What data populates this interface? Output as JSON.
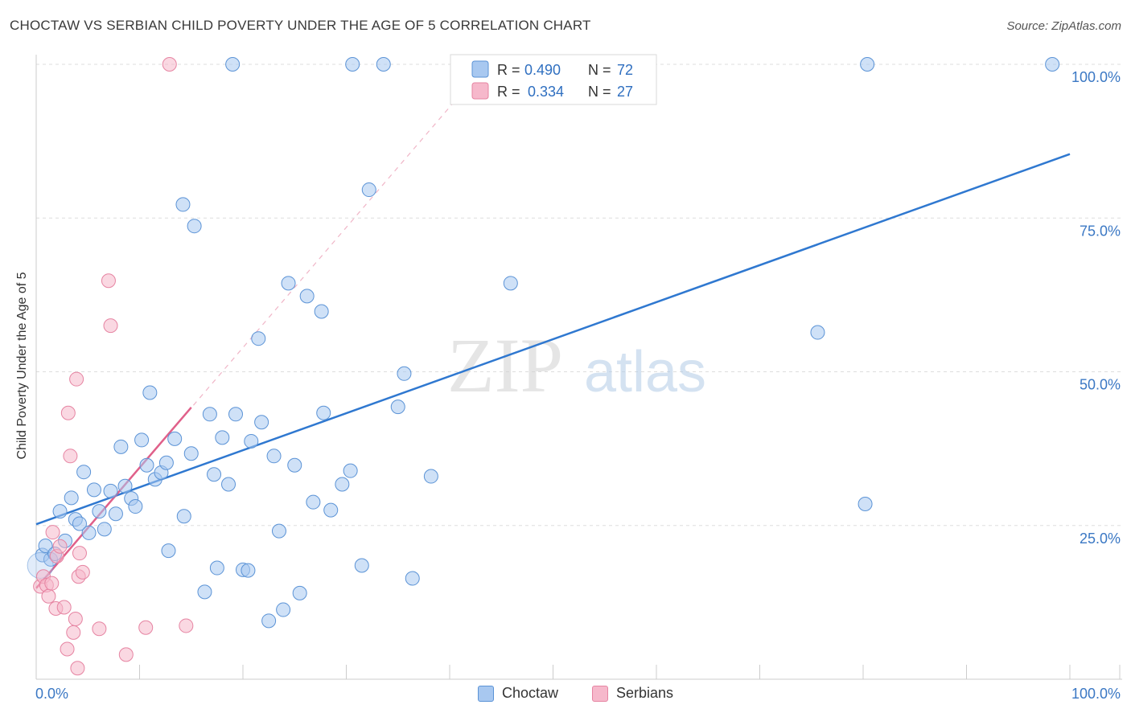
{
  "title": "CHOCTAW VS SERBIAN CHILD POVERTY UNDER THE AGE OF 5 CORRELATION CHART",
  "source": "Source: ZipAtlas.com",
  "watermark": {
    "zip": "ZIP",
    "atlas": "atlas"
  },
  "colors": {
    "choctaw_fill": "#a8c8f0",
    "choctaw_stroke": "#5b93d6",
    "choctaw_line": "#2f78d0",
    "serbians_fill": "#f6b8cb",
    "serbians_stroke": "#e684a2",
    "serbians_line": "#e0608a",
    "axis_label": "#3b78c4",
    "grid": "#dddddd"
  },
  "legend": {
    "items": [
      {
        "r_label": "R =",
        "r_value": "0.490",
        "n_label": "N =",
        "n_value": "72"
      },
      {
        "r_label": "R =",
        "r_value": "0.334",
        "n_label": "N =",
        "n_value": "27"
      }
    ]
  },
  "bottom_legend": [
    "Choctaw",
    "Serbians"
  ],
  "chart_data": {
    "type": "scatter",
    "title": "CHOCTAW VS SERBIAN CHILD POVERTY UNDER THE AGE OF 5 CORRELATION CHART",
    "xlabel": "",
    "ylabel": "Child Poverty Under the Age of 5",
    "xlim": [
      0,
      100
    ],
    "ylim": [
      0,
      100
    ],
    "x_tick_labels": [
      "0.0%",
      "100.0%"
    ],
    "y_ticks": [
      25,
      50,
      75,
      100
    ],
    "y_tick_labels": [
      "25.0%",
      "50.0%",
      "75.0%",
      "100.0%"
    ],
    "grid": true,
    "series": [
      {
        "name": "Choctaw",
        "r": 0.49,
        "n": 72,
        "trend": {
          "x": [
            0,
            100
          ],
          "y": [
            25.2,
            85.4
          ]
        },
        "points": [
          [
            0.6,
            20.2
          ],
          [
            0.9,
            21.7
          ],
          [
            1.4,
            19.5
          ],
          [
            1.8,
            20.4
          ],
          [
            2.3,
            27.3
          ],
          [
            2.8,
            22.5
          ],
          [
            3.4,
            29.5
          ],
          [
            3.8,
            26.0
          ],
          [
            4.2,
            25.3
          ],
          [
            4.6,
            33.7
          ],
          [
            5.1,
            23.8
          ],
          [
            5.6,
            30.8
          ],
          [
            6.1,
            27.3
          ],
          [
            6.6,
            24.4
          ],
          [
            7.2,
            30.6
          ],
          [
            7.7,
            26.9
          ],
          [
            8.2,
            37.8
          ],
          [
            8.6,
            31.4
          ],
          [
            9.2,
            29.4
          ],
          [
            9.6,
            28.1
          ],
          [
            10.2,
            38.9
          ],
          [
            10.7,
            34.8
          ],
          [
            11.0,
            46.6
          ],
          [
            11.5,
            32.5
          ],
          [
            12.1,
            33.6
          ],
          [
            12.6,
            35.2
          ],
          [
            12.8,
            20.9
          ],
          [
            13.4,
            39.1
          ],
          [
            14.3,
            26.5
          ],
          [
            14.2,
            77.2
          ],
          [
            15.0,
            36.7
          ],
          [
            15.3,
            73.7
          ],
          [
            16.3,
            14.2
          ],
          [
            16.8,
            43.1
          ],
          [
            17.2,
            33.3
          ],
          [
            17.5,
            18.1
          ],
          [
            18.0,
            39.3
          ],
          [
            18.6,
            31.7
          ],
          [
            19.0,
            100
          ],
          [
            19.3,
            43.1
          ],
          [
            20.0,
            17.8
          ],
          [
            20.5,
            17.7
          ],
          [
            20.8,
            38.7
          ],
          [
            21.5,
            55.4
          ],
          [
            21.8,
            41.8
          ],
          [
            22.5,
            9.5
          ],
          [
            23.0,
            36.3
          ],
          [
            23.5,
            24.1
          ],
          [
            23.9,
            11.3
          ],
          [
            24.4,
            64.4
          ],
          [
            25.0,
            34.8
          ],
          [
            25.5,
            14.0
          ],
          [
            26.2,
            62.3
          ],
          [
            26.8,
            28.8
          ],
          [
            27.6,
            59.8
          ],
          [
            27.8,
            43.3
          ],
          [
            28.5,
            27.5
          ],
          [
            29.6,
            31.7
          ],
          [
            30.4,
            33.9
          ],
          [
            30.6,
            100
          ],
          [
            31.5,
            18.5
          ],
          [
            32.2,
            79.6
          ],
          [
            33.6,
            100
          ],
          [
            35.0,
            44.3
          ],
          [
            35.6,
            49.7
          ],
          [
            36.4,
            16.4
          ],
          [
            38.2,
            33.0
          ],
          [
            45.9,
            64.4
          ],
          [
            75.6,
            56.4
          ],
          [
            80.4,
            100
          ],
          [
            80.2,
            28.5
          ],
          [
            98.3,
            100
          ]
        ]
      },
      {
        "name": "Serbians",
        "r": 0.334,
        "n": 27,
        "trend": {
          "x": [
            0,
            15
          ],
          "y": [
            14.8,
            44.2
          ]
        },
        "trend_extended": {
          "x": [
            0,
            41
          ],
          "y": [
            14.8,
            95.0
          ]
        },
        "points": [
          [
            0.4,
            15.1
          ],
          [
            0.7,
            16.7
          ],
          [
            1.0,
            15.3
          ],
          [
            1.2,
            13.5
          ],
          [
            1.5,
            15.6
          ],
          [
            1.6,
            23.9
          ],
          [
            1.9,
            11.5
          ],
          [
            2.0,
            20.0
          ],
          [
            2.3,
            21.6
          ],
          [
            2.7,
            11.7
          ],
          [
            3.0,
            4.9
          ],
          [
            3.1,
            43.3
          ],
          [
            3.3,
            36.3
          ],
          [
            3.6,
            7.6
          ],
          [
            3.8,
            9.8
          ],
          [
            3.9,
            48.8
          ],
          [
            4.1,
            16.7
          ],
          [
            4.2,
            20.5
          ],
          [
            4.5,
            17.4
          ],
          [
            6.1,
            8.2
          ],
          [
            7.0,
            64.8
          ],
          [
            7.2,
            57.5
          ],
          [
            8.7,
            4.0
          ],
          [
            10.6,
            8.4
          ],
          [
            12.9,
            100
          ],
          [
            14.5,
            8.7
          ],
          [
            4.0,
            1.8
          ]
        ]
      }
    ]
  }
}
